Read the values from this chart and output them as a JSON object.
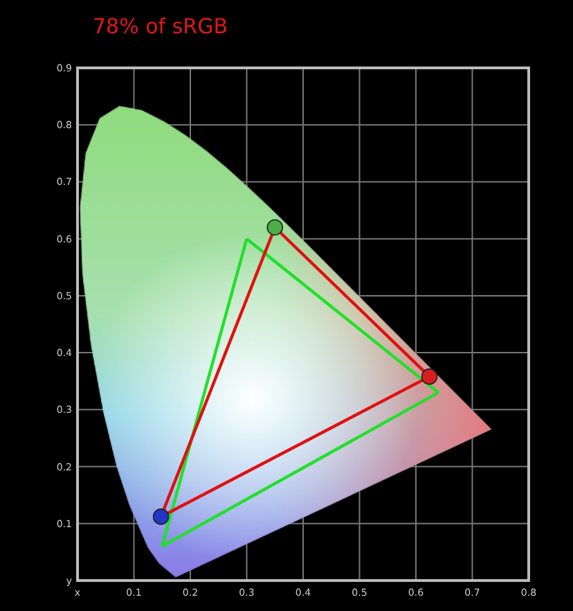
{
  "chart_data": {
    "type": "line",
    "title": "78% of sRGB",
    "xlim": [
      0,
      0.8
    ],
    "ylim": [
      0,
      0.9
    ],
    "xticks": [
      {
        "value": 0,
        "label": "x"
      },
      0.1,
      0.2,
      0.3,
      0.4,
      0.5,
      0.6,
      0.7,
      0.8
    ],
    "yticks": [
      {
        "value": 0,
        "label": "y"
      },
      0.1,
      0.2,
      0.3,
      0.4,
      0.5,
      0.6,
      0.7,
      0.8,
      0.9
    ],
    "grid": true,
    "series": [
      {
        "color": "#22e02a",
        "x": [
          0.15,
          0.3
        ],
        "values": [
          0.06,
          0.6
        ]
      },
      {
        "color": "#22e02a",
        "x": [
          0.3,
          0.64
        ],
        "values": [
          0.6,
          0.33
        ]
      },
      {
        "color": "#22e02a",
        "x": [
          0.15,
          0.64
        ],
        "values": [
          0.06,
          0.33
        ]
      },
      {
        "color": "#e01010",
        "x": [
          0.148,
          0.35
        ],
        "values": [
          0.112,
          0.62
        ]
      },
      {
        "color": "#e01010",
        "x": [
          0.35,
          0.624
        ],
        "values": [
          0.62,
          0.358
        ]
      },
      {
        "color": "#e01010",
        "x": [
          0.148,
          0.624
        ],
        "values": [
          0.112,
          0.358
        ]
      },
      {
        "type": "scatter",
        "x": [
          0.35,
          0.624,
          0.148
        ],
        "values": [
          0.62,
          0.358,
          0.112
        ],
        "colors": [
          "#4caf45",
          "#d81e1e",
          "#2236c8"
        ],
        "marker": "circle"
      }
    ]
  }
}
